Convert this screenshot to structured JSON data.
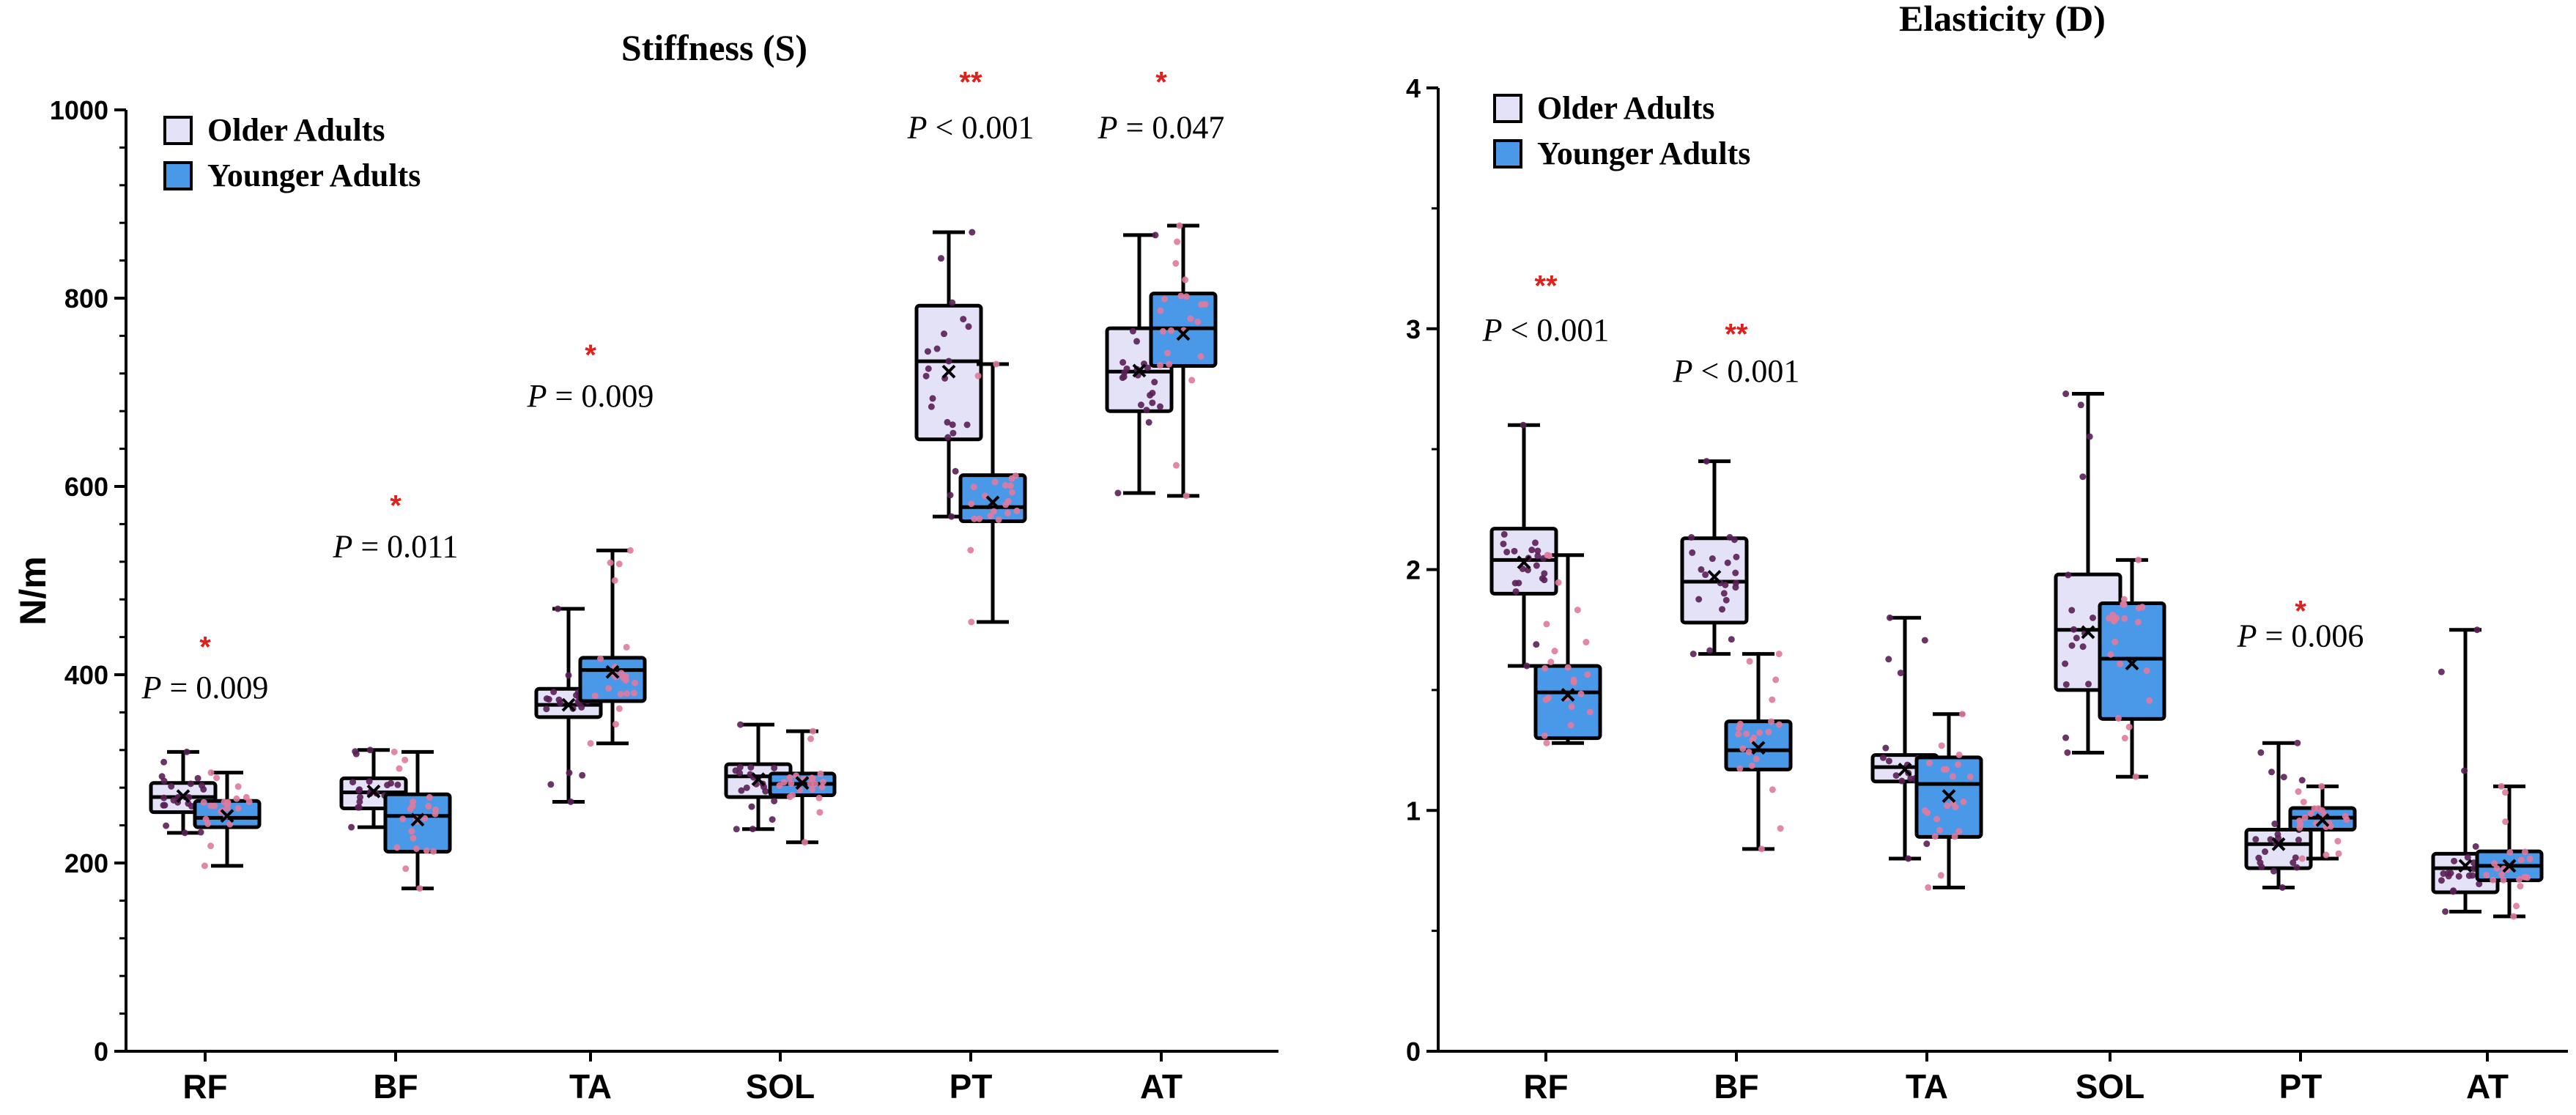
{
  "colors": {
    "older": "#e4e2f6",
    "younger": "#4a98e8",
    "stroke": "#000000",
    "star": "#e0201b",
    "older_dot": "#5b1f56",
    "younger_dot": "#e07a9e"
  },
  "chart_data": [
    {
      "type": "box",
      "title": "Stiffness (S)",
      "ylabel": "N/m",
      "xlabel": "",
      "ylim": [
        0,
        1000
      ],
      "yticks": [
        0,
        200,
        400,
        600,
        800,
        1000
      ],
      "ytick_labels": [
        "0",
        "200",
        "400",
        "600",
        "800",
        "1000"
      ],
      "categories": [
        "RF",
        "BF",
        "TA",
        "SOL",
        "PT",
        "AT"
      ],
      "legend": [
        "Older Adults",
        "Younger Adults"
      ],
      "legend_position": "top-left",
      "series": [
        {
          "name": "Older Adults",
          "boxes": [
            {
              "min": 232,
              "q1": 254,
              "median": 270,
              "q3": 285,
              "max": 318,
              "mean": 271
            },
            {
              "min": 238,
              "q1": 258,
              "median": 275,
              "q3": 290,
              "max": 320,
              "mean": 276
            },
            {
              "min": 265,
              "q1": 355,
              "median": 368,
              "q3": 385,
              "max": 470,
              "mean": 368
            },
            {
              "min": 236,
              "q1": 270,
              "median": 292,
              "q3": 305,
              "max": 347,
              "mean": 289
            },
            {
              "min": 568,
              "q1": 650,
              "median": 733,
              "q3": 792,
              "max": 870,
              "mean": 722
            },
            {
              "min": 593,
              "q1": 680,
              "median": 722,
              "q3": 768,
              "max": 867,
              "mean": 723
            }
          ]
        },
        {
          "name": "Younger Adults",
          "boxes": [
            {
              "min": 197,
              "q1": 238,
              "median": 248,
              "q3": 266,
              "max": 296,
              "mean": 250
            },
            {
              "min": 173,
              "q1": 212,
              "median": 250,
              "q3": 273,
              "max": 318,
              "mean": 246
            },
            {
              "min": 327,
              "q1": 372,
              "median": 405,
              "q3": 418,
              "max": 532,
              "mean": 403
            },
            {
              "min": 222,
              "q1": 272,
              "median": 284,
              "q3": 295,
              "max": 340,
              "mean": 285
            },
            {
              "min": 456,
              "q1": 563,
              "median": 578,
              "q3": 612,
              "max": 730,
              "mean": 583
            },
            {
              "min": 590,
              "q1": 728,
              "median": 768,
              "q3": 805,
              "max": 877,
              "mean": 762
            }
          ]
        }
      ],
      "annotations": [
        {
          "category": "RF",
          "p": "= 0.009",
          "stars": "*",
          "p_value": 375,
          "star_value": 430
        },
        {
          "category": "BF",
          "p": "= 0.011",
          "stars": "*",
          "p_value": 525,
          "star_value": 580
        },
        {
          "category": "TA",
          "p": "= 0.009",
          "stars": "*",
          "p_value": 685,
          "star_value": 740
        },
        {
          "category": "PT",
          "p": "< 0.001",
          "stars": "**",
          "p_value": 970,
          "star_value": 1030
        },
        {
          "category": "AT",
          "p": "= 0.047",
          "stars": "*",
          "p_value": 970,
          "star_value": 1030
        }
      ]
    },
    {
      "type": "box",
      "title": "Elasticity (D)",
      "ylabel": "",
      "xlabel": "",
      "ylim": [
        0,
        4
      ],
      "yticks": [
        0,
        1,
        2,
        3,
        4
      ],
      "ytick_labels": [
        "0",
        "1",
        "2",
        "3",
        "4"
      ],
      "categories": [
        "RF",
        "BF",
        "TA",
        "SOL",
        "PT",
        "AT"
      ],
      "legend": [
        "Older Adults",
        "Younger Adults"
      ],
      "legend_position": "top-left",
      "series": [
        {
          "name": "Older Adults",
          "boxes": [
            {
              "min": 1.6,
              "q1": 1.9,
              "median": 2.04,
              "q3": 2.17,
              "max": 2.6,
              "mean": 2.03
            },
            {
              "min": 1.65,
              "q1": 1.78,
              "median": 1.95,
              "q3": 2.13,
              "max": 2.45,
              "mean": 1.97
            },
            {
              "min": 0.8,
              "q1": 1.12,
              "median": 1.18,
              "q3": 1.23,
              "max": 1.8,
              "mean": 1.17
            },
            {
              "min": 1.24,
              "q1": 1.5,
              "median": 1.75,
              "q3": 1.98,
              "max": 2.73,
              "mean": 1.74
            },
            {
              "min": 0.68,
              "q1": 0.76,
              "median": 0.86,
              "q3": 0.92,
              "max": 1.28,
              "mean": 0.86
            },
            {
              "min": 0.58,
              "q1": 0.66,
              "median": 0.76,
              "q3": 0.82,
              "max": 1.75,
              "mean": 0.77
            }
          ]
        },
        {
          "name": "Younger Adults",
          "boxes": [
            {
              "min": 1.28,
              "q1": 1.3,
              "median": 1.49,
              "q3": 1.6,
              "max": 2.06,
              "mean": 1.48
            },
            {
              "min": 0.84,
              "q1": 1.17,
              "median": 1.25,
              "q3": 1.37,
              "max": 1.65,
              "mean": 1.26
            },
            {
              "min": 0.68,
              "q1": 0.89,
              "median": 1.11,
              "q3": 1.22,
              "max": 1.4,
              "mean": 1.06
            },
            {
              "min": 1.14,
              "q1": 1.38,
              "median": 1.63,
              "q3": 1.86,
              "max": 2.04,
              "mean": 1.61
            },
            {
              "min": 0.8,
              "q1": 0.92,
              "median": 0.97,
              "q3": 1.01,
              "max": 1.1,
              "mean": 0.96
            },
            {
              "min": 0.56,
              "q1": 0.71,
              "median": 0.77,
              "q3": 0.83,
              "max": 1.1,
              "mean": 0.77
            }
          ]
        }
      ],
      "annotations": [
        {
          "category": "RF",
          "p": "< 0.001",
          "stars": "**",
          "p_value": 2.95,
          "star_value": 3.18
        },
        {
          "category": "BF",
          "p": "< 0.001",
          "stars": "**",
          "p_value": 2.78,
          "star_value": 2.98
        },
        {
          "category": "PT",
          "p": "= 0.006",
          "stars": "*",
          "p_value": 1.68,
          "star_value": 1.83
        }
      ]
    }
  ]
}
